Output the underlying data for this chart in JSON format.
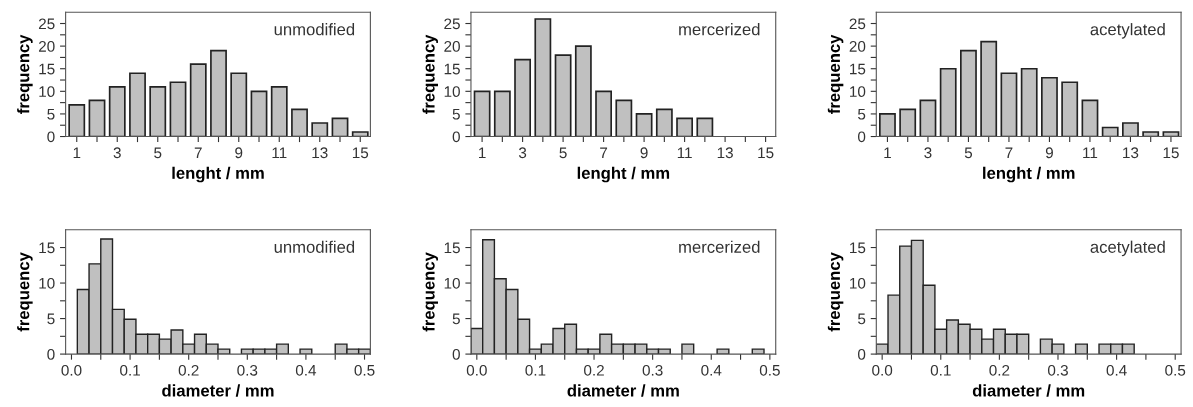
{
  "chart_data": [
    {
      "type": "bar",
      "xlabel": "lenght / mm",
      "ylabel": "frequency",
      "annotations": [
        "unmodified"
      ],
      "color": "#c0c0c0",
      "x": [
        1,
        2,
        3,
        4,
        5,
        6,
        7,
        8,
        9,
        10,
        11,
        12,
        13,
        14,
        15
      ],
      "values": [
        7,
        8,
        11,
        14,
        11,
        12,
        16,
        19,
        14,
        10,
        11,
        6,
        3,
        4,
        1
      ],
      "xlim": [
        0.45,
        15.5
      ],
      "xticks": [
        1,
        {
          "value": 2,
          "label": null
        },
        3,
        {
          "value": 4,
          "label": null
        },
        5,
        {
          "value": 6,
          "label": null
        },
        7,
        {
          "value": 8,
          "label": null
        },
        9,
        {
          "value": 10,
          "label": null
        },
        11,
        {
          "value": 12,
          "label": null
        },
        13,
        {
          "value": 14,
          "label": null
        },
        15
      ],
      "ylim": [
        0,
        27.5
      ],
      "yticks": [
        0,
        {
          "value": 2.5,
          "label": null
        },
        5,
        {
          "value": 7.5,
          "label": null
        },
        10,
        {
          "value": 12.5,
          "label": null
        },
        15,
        {
          "value": 17.5,
          "label": null
        },
        20,
        {
          "value": 22.5,
          "label": null
        },
        25
      ]
    },
    {
      "type": "bar",
      "xlabel": "lenght / mm",
      "ylabel": "frequency",
      "annotations": [
        "mercerized"
      ],
      "color": "#c0c0c0",
      "x": [
        1,
        2,
        3,
        4,
        5,
        6,
        7,
        8,
        9,
        10,
        11,
        12
      ],
      "values": [
        10,
        10,
        17,
        26,
        18,
        20,
        10,
        8,
        5,
        6,
        4,
        4
      ],
      "xlim": [
        0.45,
        15.5
      ],
      "xticks": [
        1,
        {
          "value": 2,
          "label": null
        },
        3,
        {
          "value": 4,
          "label": null
        },
        5,
        {
          "value": 6,
          "label": null
        },
        7,
        {
          "value": 8,
          "label": null
        },
        9,
        {
          "value": 10,
          "label": null
        },
        11,
        {
          "value": 12,
          "label": null
        },
        13,
        {
          "value": 14,
          "label": null
        },
        15
      ],
      "ylim": [
        0,
        27.5
      ],
      "yticks": [
        0,
        {
          "value": 2.5,
          "label": null
        },
        5,
        {
          "value": 7.5,
          "label": null
        },
        10,
        {
          "value": 12.5,
          "label": null
        },
        15,
        {
          "value": 17.5,
          "label": null
        },
        20,
        {
          "value": 22.5,
          "label": null
        },
        25
      ]
    },
    {
      "type": "bar",
      "xlabel": "lenght / mm",
      "ylabel": "frequency",
      "annotations": [
        "acetylated"
      ],
      "color": "#c0c0c0",
      "x": [
        1,
        2,
        3,
        4,
        5,
        6,
        7,
        8,
        9,
        10,
        11,
        12,
        13,
        14,
        15
      ],
      "values": [
        5,
        6,
        8,
        15,
        19,
        21,
        14,
        15,
        13,
        12,
        8,
        2,
        3,
        1,
        1
      ],
      "xlim": [
        0.45,
        15.5
      ],
      "xticks": [
        1,
        {
          "value": 2,
          "label": null
        },
        3,
        {
          "value": 4,
          "label": null
        },
        5,
        {
          "value": 6,
          "label": null
        },
        7,
        {
          "value": 8,
          "label": null
        },
        9,
        {
          "value": 10,
          "label": null
        },
        11,
        {
          "value": 12,
          "label": null
        },
        13,
        {
          "value": 14,
          "label": null
        },
        15
      ],
      "ylim": [
        0,
        27.5
      ],
      "yticks": [
        0,
        {
          "value": 2.5,
          "label": null
        },
        5,
        {
          "value": 7.5,
          "label": null
        },
        10,
        {
          "value": 12.5,
          "label": null
        },
        15,
        {
          "value": 17.5,
          "label": null
        },
        20,
        {
          "value": 22.5,
          "label": null
        },
        25
      ]
    },
    {
      "type": "histogram",
      "xlabel": "diameter / mm",
      "ylabel": "frequency",
      "annotations": [
        "unmodified"
      ],
      "color": "#c0c0c0",
      "bins": [
        0.01,
        0.03,
        0.05,
        0.07,
        0.09,
        0.11,
        0.13,
        0.15,
        0.17,
        0.19,
        0.21,
        0.23,
        0.25,
        0.27,
        0.29,
        0.31,
        0.33,
        0.35,
        0.37,
        0.39,
        0.41,
        0.43,
        0.45,
        0.47,
        0.49,
        0.51
      ],
      "values": [
        9.1,
        12.7,
        16.2,
        6.3,
        4.9,
        2.8,
        2.8,
        2.1,
        3.4,
        1.4,
        2.8,
        1.4,
        0.7,
        0,
        0.7,
        0.7,
        0.7,
        1.4,
        0,
        0.7,
        0,
        0,
        1.4,
        0.7,
        0.7
      ],
      "xlim": [
        -0.01,
        0.51
      ],
      "xticks": [
        {
          "value": 0.0,
          "label": "0.0"
        },
        {
          "value": 0.05,
          "label": null
        },
        0.1,
        {
          "value": 0.15,
          "label": null
        },
        0.2,
        {
          "value": 0.25,
          "label": null
        },
        0.3,
        {
          "value": 0.35,
          "label": null
        },
        0.4,
        {
          "value": 0.45,
          "label": null
        },
        0.5
      ],
      "ylim": [
        0,
        17.5
      ],
      "yticks": [
        0,
        {
          "value": 2.5,
          "label": null
        },
        5,
        {
          "value": 7.5,
          "label": null
        },
        10,
        {
          "value": 12.5,
          "label": null
        },
        15
      ]
    },
    {
      "type": "histogram",
      "xlabel": "diameter / mm",
      "ylabel": "frequency",
      "annotations": [
        "mercerized"
      ],
      "color": "#c0c0c0",
      "bins": [
        -0.01,
        0.01,
        0.03,
        0.05,
        0.07,
        0.09,
        0.11,
        0.13,
        0.15,
        0.17,
        0.19,
        0.21,
        0.23,
        0.25,
        0.27,
        0.29,
        0.31,
        0.33,
        0.35,
        0.37,
        0.39,
        0.41,
        0.43,
        0.45,
        0.47,
        0.49
      ],
      "values": [
        3.6,
        16.1,
        10.6,
        9.1,
        4.9,
        0.7,
        1.4,
        3.6,
        4.2,
        0.7,
        0.7,
        2.8,
        1.4,
        1.4,
        1.4,
        0.7,
        0.7,
        0,
        1.4,
        0,
        0,
        0.7,
        0,
        0,
        0.7
      ],
      "xlim": [
        -0.01,
        0.51
      ],
      "xticks": [
        {
          "value": 0.0,
          "label": "0.0"
        },
        {
          "value": 0.05,
          "label": null
        },
        0.1,
        {
          "value": 0.15,
          "label": null
        },
        0.2,
        {
          "value": 0.25,
          "label": null
        },
        0.3,
        {
          "value": 0.35,
          "label": null
        },
        0.4,
        {
          "value": 0.45,
          "label": null
        },
        0.5
      ],
      "ylim": [
        0,
        17.5
      ],
      "yticks": [
        0,
        {
          "value": 2.5,
          "label": null
        },
        5,
        {
          "value": 7.5,
          "label": null
        },
        10,
        {
          "value": 12.5,
          "label": null
        },
        15
      ]
    },
    {
      "type": "histogram",
      "xlabel": "diameter / mm",
      "ylabel": "frequency",
      "annotations": [
        "acetylated"
      ],
      "color": "#c0c0c0",
      "bins": [
        -0.01,
        0.01,
        0.03,
        0.05,
        0.07,
        0.09,
        0.11,
        0.13,
        0.15,
        0.17,
        0.19,
        0.21,
        0.23,
        0.25,
        0.27,
        0.29,
        0.31,
        0.33,
        0.35,
        0.37,
        0.39,
        0.41,
        0.43
      ],
      "values": [
        1.4,
        8.3,
        15.2,
        16.0,
        9.7,
        3.5,
        4.8,
        4.2,
        3.5,
        2.1,
        3.5,
        2.8,
        2.8,
        0,
        2.1,
        1.4,
        0,
        1.4,
        0,
        1.4,
        1.4,
        1.4
      ],
      "xlim": [
        -0.01,
        0.51
      ],
      "xticks": [
        {
          "value": 0.0,
          "label": "0.0"
        },
        {
          "value": 0.05,
          "label": null
        },
        0.1,
        {
          "value": 0.15,
          "label": null
        },
        0.2,
        {
          "value": 0.25,
          "label": null
        },
        0.3,
        {
          "value": 0.35,
          "label": null
        },
        0.4,
        {
          "value": 0.45,
          "label": null
        },
        0.5
      ],
      "ylim": [
        0,
        17.5
      ],
      "yticks": [
        0,
        {
          "value": 2.5,
          "label": null
        },
        5,
        {
          "value": 7.5,
          "label": null
        },
        10,
        {
          "value": 12.5,
          "label": null
        },
        15
      ]
    }
  ]
}
